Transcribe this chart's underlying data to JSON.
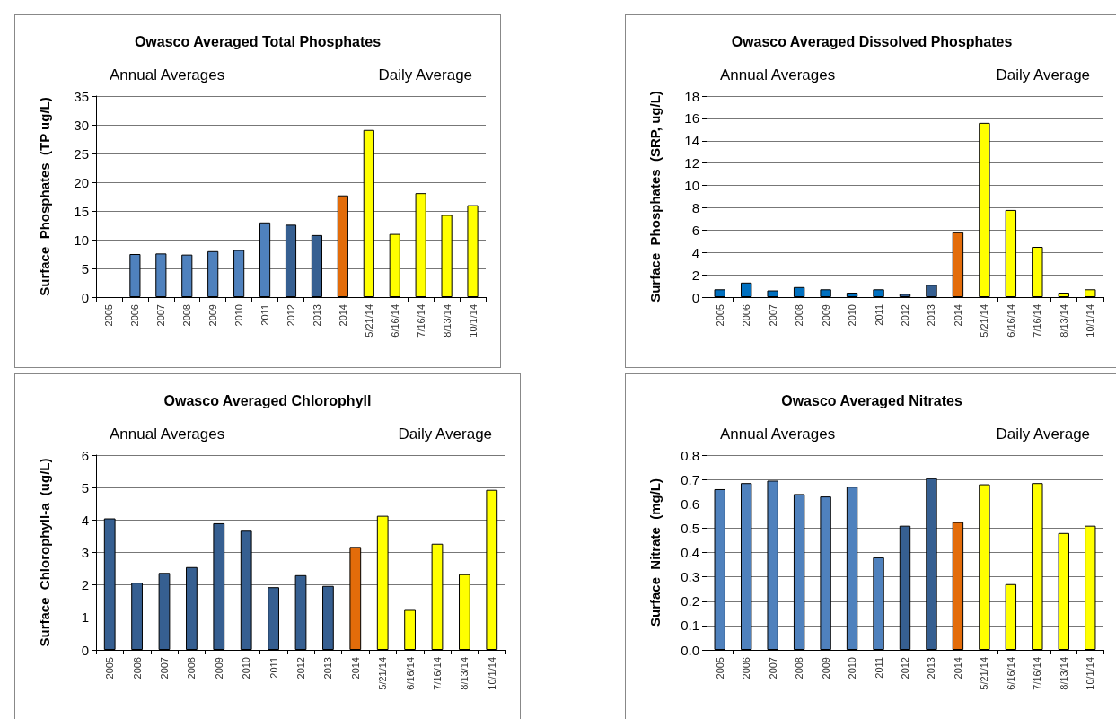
{
  "chart_data": [
    {
      "type": "bar",
      "title": "Owasco Averaged Total Phosphates",
      "ylabel": "Surface  Phosphates  (TP ug/L)",
      "annotations": [
        "Annual Averages",
        "Daily Average"
      ],
      "categories": [
        "2005",
        "2006",
        "2007",
        "2008",
        "2009",
        "2010",
        "2011",
        "2012",
        "2013",
        "2014",
        "5/21/14",
        "6/16/14",
        "7/16/14",
        "8/13/14",
        "10/1/14"
      ],
      "values": [
        null,
        7.5,
        7.6,
        7.4,
        8.0,
        8.2,
        13.0,
        12.6,
        10.8,
        17.7,
        29.1,
        11.0,
        18.1,
        14.3,
        16.0
      ],
      "colors": [
        null,
        "#4f81bd",
        "#4f81bd",
        "#4f81bd",
        "#4f81bd",
        "#4f81bd",
        "#4f81bd",
        "#365f91",
        "#365f91",
        "#e36c0a",
        "#ffff00",
        "#ffff00",
        "#ffff00",
        "#ffff00",
        "#ffff00"
      ],
      "ylim": [
        0,
        35
      ],
      "yticks": [
        0,
        5,
        10,
        15,
        20,
        25,
        30,
        35
      ],
      "grid": "y"
    },
    {
      "type": "bar",
      "title": "Owasco Averaged Dissolved Phosphates",
      "ylabel": "Surface  Phosphates  (SRP, ug/L)",
      "annotations": [
        "Annual Averages",
        "Daily Average"
      ],
      "categories": [
        "2005",
        "2006",
        "2007",
        "2008",
        "2009",
        "2010",
        "2011",
        "2012",
        "2013",
        "2014",
        "5/21/14",
        "6/16/14",
        "7/16/14",
        "8/13/14",
        "10/1/14"
      ],
      "values": [
        0.7,
        1.3,
        0.6,
        0.9,
        0.7,
        0.4,
        0.7,
        0.3,
        1.1,
        5.8,
        15.6,
        7.8,
        4.5,
        0.4,
        0.7
      ],
      "colors": [
        "#0070c0",
        "#0070c0",
        "#0070c0",
        "#0070c0",
        "#0070c0",
        "#0070c0",
        "#0070c0",
        "#365f91",
        "#365f91",
        "#e36c0a",
        "#ffff00",
        "#ffff00",
        "#ffff00",
        "#ffff00",
        "#ffff00"
      ],
      "ylim": [
        0,
        18
      ],
      "yticks": [
        0,
        2,
        4,
        6,
        8,
        10,
        12,
        14,
        16,
        18
      ],
      "grid": "y"
    },
    {
      "type": "bar",
      "title": "Owasco Averaged Chlorophyll",
      "ylabel": "Surface  Chlorophyll-a  (ug/L)",
      "annotations": [
        "Annual Averages",
        "Daily Average"
      ],
      "categories": [
        "2005",
        "2006",
        "2007",
        "2008",
        "2009",
        "2010",
        "2011",
        "2012",
        "2013",
        "2014",
        "5/21/14",
        "6/16/14",
        "7/16/14",
        "8/13/14",
        "10/1/14"
      ],
      "values": [
        4.05,
        2.07,
        2.37,
        2.55,
        3.9,
        3.67,
        1.93,
        2.3,
        1.97,
        3.17,
        4.13,
        1.23,
        3.27,
        2.33,
        4.93
      ],
      "colors": [
        "#365f91",
        "#365f91",
        "#365f91",
        "#365f91",
        "#365f91",
        "#365f91",
        "#365f91",
        "#365f91",
        "#365f91",
        "#e36c0a",
        "#ffff00",
        "#ffff00",
        "#ffff00",
        "#ffff00",
        "#ffff00"
      ],
      "ylim": [
        0,
        6
      ],
      "yticks": [
        0,
        1,
        2,
        3,
        4,
        5,
        6
      ],
      "grid": "y"
    },
    {
      "type": "bar",
      "title": "Owasco Averaged Nitrates",
      "ylabel": "Surface  Nitrate  (mg/L)",
      "annotations": [
        "Annual Averages",
        "Daily Average"
      ],
      "categories": [
        "2005",
        "2006",
        "2007",
        "2008",
        "2009",
        "2010",
        "2011",
        "2012",
        "2013",
        "2014",
        "5/21/14",
        "6/16/14",
        "7/16/14",
        "8/13/14",
        "10/1/14"
      ],
      "values": [
        0.66,
        0.685,
        0.695,
        0.64,
        0.63,
        0.67,
        0.38,
        0.51,
        0.705,
        0.525,
        0.68,
        0.27,
        0.685,
        0.48,
        0.51
      ],
      "colors": [
        "#4f81bd",
        "#4f81bd",
        "#4f81bd",
        "#4f81bd",
        "#4f81bd",
        "#4f81bd",
        "#4f81bd",
        "#365f91",
        "#365f91",
        "#e36c0a",
        "#ffff00",
        "#ffff00",
        "#ffff00",
        "#ffff00",
        "#ffff00"
      ],
      "ylim": [
        0,
        0.8
      ],
      "yticks": [
        {
          "value": 0,
          "label": "0.0"
        },
        {
          "value": 0.1,
          "label": "0.1"
        },
        {
          "value": 0.2,
          "label": "0.2"
        },
        {
          "value": 0.3,
          "label": "0.3"
        },
        {
          "value": 0.4,
          "label": "0.4"
        },
        {
          "value": 0.5,
          "label": "0.5"
        },
        {
          "value": 0.6,
          "label": "0.6"
        },
        {
          "value": 0.7,
          "label": "0.7"
        },
        {
          "value": 0.8,
          "label": "0.8"
        }
      ],
      "grid": "y"
    }
  ]
}
